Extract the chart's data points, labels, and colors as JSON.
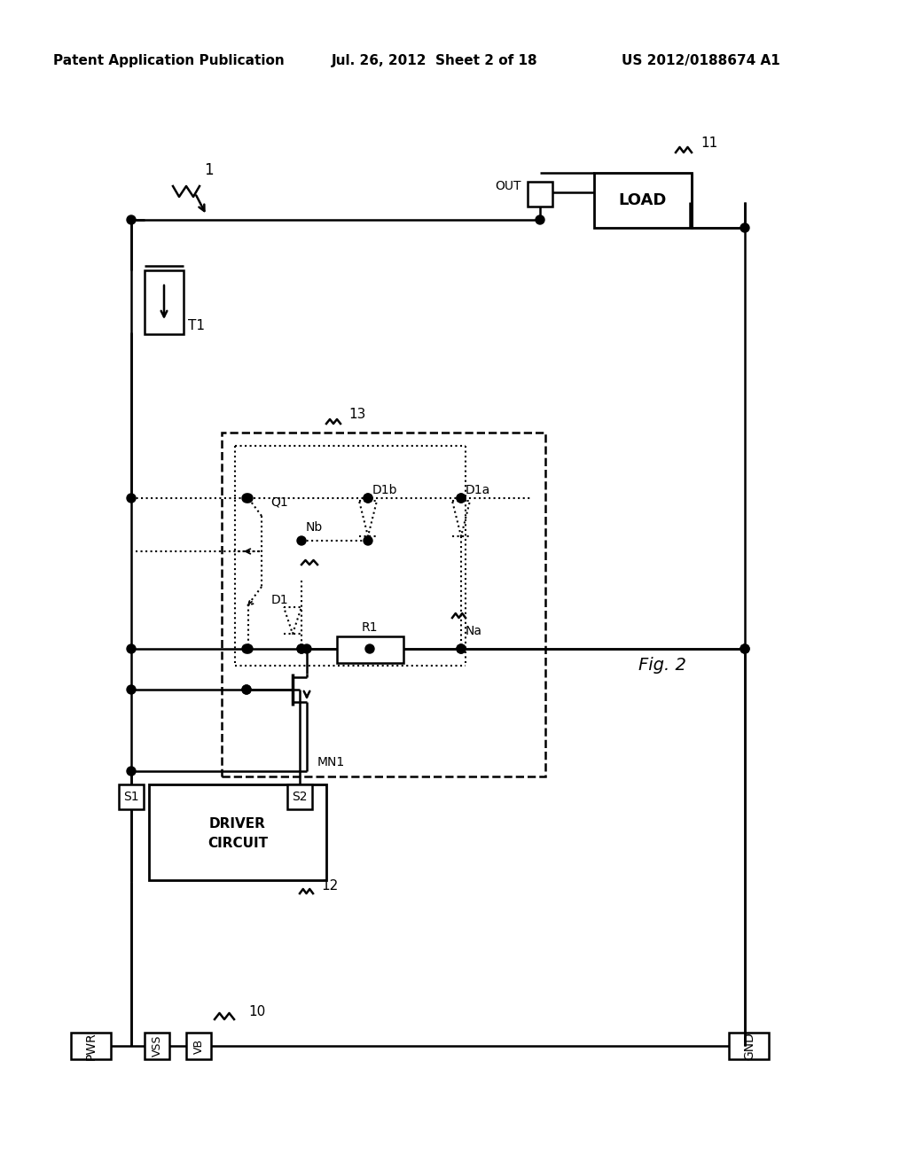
{
  "title_left": "Patent Application Publication",
  "title_mid": "Jul. 26, 2012  Sheet 2 of 18",
  "title_right": "US 2012/0188674 A1",
  "fig_label": "Fig. 2",
  "background_color": "#ffffff",
  "line_color": "#000000"
}
